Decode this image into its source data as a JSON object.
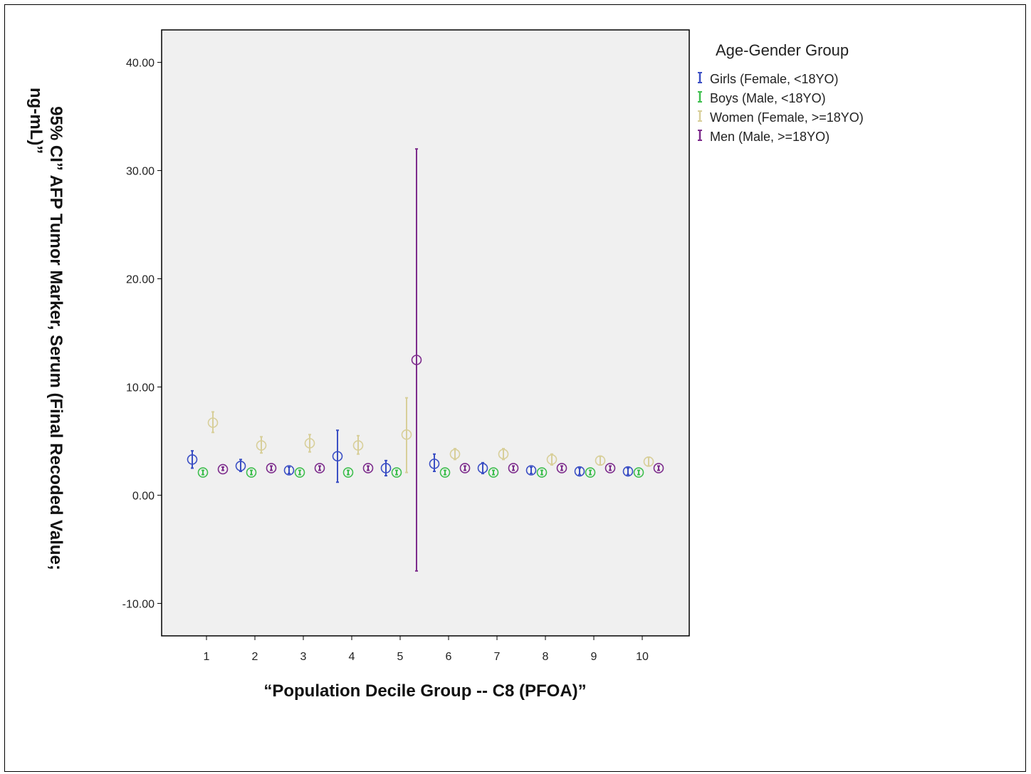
{
  "chart_data": {
    "type": "errorbar",
    "title": "",
    "xlabel": "“Population Decile Group --  C8 (PFOA)”",
    "ylabel_lines": [
      "95% CI”  AFP Tumor Marker, Serum (Final Recoded Value;",
      "ng-mL)”"
    ],
    "categories": [
      "1",
      "2",
      "3",
      "4",
      "5",
      "6",
      "7",
      "8",
      "9",
      "10"
    ],
    "ylim": [
      -13,
      43
    ],
    "yticks": [
      -10,
      0,
      10,
      20,
      30,
      40
    ],
    "ytick_labels": [
      "-10.00",
      "0.00",
      "10.00",
      "20.00",
      "30.00",
      "40.00"
    ],
    "grid": false,
    "legend": {
      "title": "Age-Gender Group",
      "placement": "right"
    },
    "series": [
      {
        "name": "Girls (Female, <18YO)",
        "color": "#3b4fc4",
        "means": [
          3.3,
          2.7,
          2.3,
          3.6,
          2.5,
          2.9,
          2.5,
          2.3,
          2.2,
          2.2
        ],
        "lower": [
          2.5,
          2.2,
          2.0,
          1.2,
          1.8,
          2.2,
          2.0,
          2.0,
          1.9,
          1.9
        ],
        "upper": [
          4.1,
          3.3,
          2.6,
          6.0,
          3.2,
          3.8,
          3.0,
          2.6,
          2.5,
          2.5
        ]
      },
      {
        "name": "Boys (Male, <18YO)",
        "color": "#3fbf4f",
        "means": [
          2.1,
          2.1,
          2.1,
          2.1,
          2.1,
          2.1,
          2.1,
          2.1,
          2.1,
          2.1
        ],
        "lower": [
          1.9,
          1.9,
          1.9,
          1.9,
          1.9,
          1.9,
          1.9,
          1.9,
          1.9,
          1.9
        ],
        "upper": [
          2.3,
          2.3,
          2.3,
          2.3,
          2.3,
          2.3,
          2.3,
          2.3,
          2.3,
          2.3
        ]
      },
      {
        "name": "Women (Female, >=18YO)",
        "color": "#d8cf9a",
        "means": [
          6.7,
          4.6,
          4.8,
          4.6,
          5.6,
          3.8,
          3.8,
          3.3,
          3.2,
          3.1
        ],
        "lower": [
          5.8,
          3.9,
          4.0,
          3.8,
          2.1,
          3.3,
          3.3,
          2.8,
          2.8,
          2.7
        ],
        "upper": [
          7.7,
          5.4,
          5.6,
          5.5,
          9.0,
          4.3,
          4.3,
          3.8,
          3.6,
          3.5
        ]
      },
      {
        "name": "Men (Male, >=18YO)",
        "color": "#7d2c8c",
        "means": [
          2.4,
          2.5,
          2.5,
          2.5,
          12.5,
          2.5,
          2.5,
          2.5,
          2.5,
          2.5
        ],
        "lower": [
          2.3,
          2.3,
          2.3,
          2.3,
          -7.0,
          2.3,
          2.3,
          2.3,
          2.3,
          2.3
        ],
        "upper": [
          2.6,
          2.7,
          2.7,
          2.7,
          32.0,
          2.7,
          2.7,
          2.7,
          2.7,
          2.7
        ]
      }
    ]
  }
}
